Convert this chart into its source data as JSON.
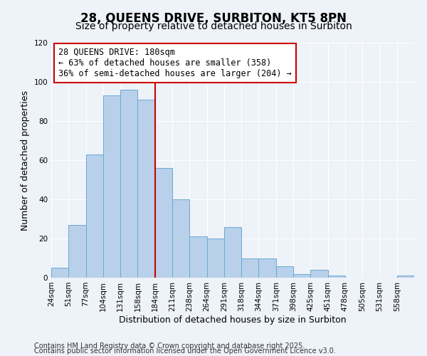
{
  "title": "28, QUEENS DRIVE, SURBITON, KT5 8PN",
  "subtitle": "Size of property relative to detached houses in Surbiton",
  "xlabel": "Distribution of detached houses by size in Surbiton",
  "ylabel": "Number of detached properties",
  "bin_labels": [
    "24sqm",
    "51sqm",
    "77sqm",
    "104sqm",
    "131sqm",
    "158sqm",
    "184sqm",
    "211sqm",
    "238sqm",
    "264sqm",
    "291sqm",
    "318sqm",
    "344sqm",
    "371sqm",
    "398sqm",
    "425sqm",
    "451sqm",
    "478sqm",
    "505sqm",
    "531sqm",
    "558sqm"
  ],
  "bar_heights": [
    5,
    27,
    63,
    93,
    96,
    91,
    56,
    40,
    21,
    20,
    26,
    10,
    10,
    6,
    2,
    4,
    1,
    0,
    0,
    0,
    1
  ],
  "bar_color": "#b8d0ea",
  "bar_edge_color": "#6aaad4",
  "vline_x_index": 6,
  "vline_color": "#cc0000",
  "annotation_line1": "28 QUEENS DRIVE: 180sqm",
  "annotation_line2": "← 63% of detached houses are smaller (358)",
  "annotation_line3": "36% of semi-detached houses are larger (204) →",
  "annotation_box_edge": "#cc0000",
  "ylim": [
    0,
    120
  ],
  "yticks": [
    0,
    20,
    40,
    60,
    80,
    100,
    120
  ],
  "footer1": "Contains HM Land Registry data © Crown copyright and database right 2025.",
  "footer2": "Contains public sector information licensed under the Open Government Licence v3.0.",
  "bg_color": "#eef2f9",
  "plot_bg_color": "#eef2f9",
  "grid_color": "#ffffff",
  "title_fontsize": 12,
  "subtitle_fontsize": 10,
  "label_fontsize": 9,
  "tick_fontsize": 7.5,
  "annotation_fontsize": 8.5,
  "footer_fontsize": 7
}
